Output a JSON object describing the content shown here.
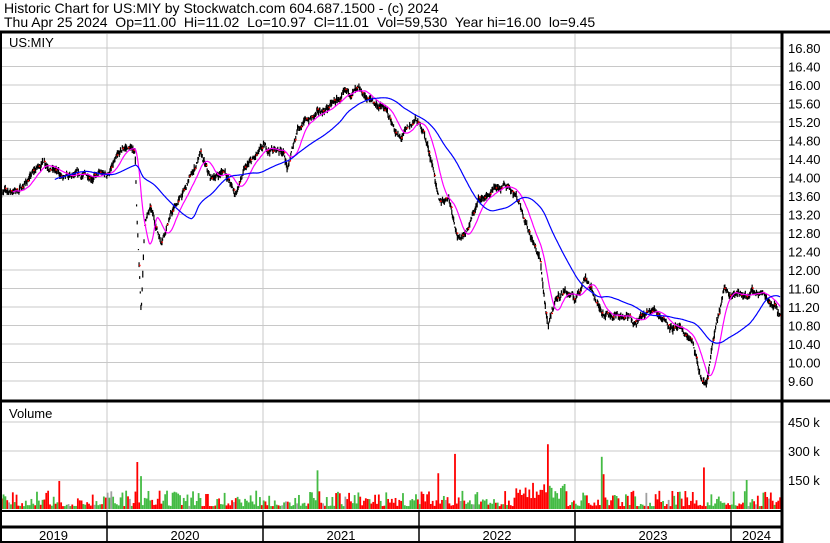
{
  "header": {
    "title": "Historic Chart for US:MIY by Stockwatch.com 604.687.1500 - (c) 2024",
    "quote_line": "Thu Apr 25 2024  Op=11.00  Hi=11.02  Lo=10.97  Cl=11.01  Vol=59,530  Year hi=16.00  lo=9.45"
  },
  "chart_data": [
    {
      "type": "line",
      "panel": "price",
      "symbol_label": "US:MIY",
      "y_ticks": [
        "16.80",
        "16.40",
        "16.00",
        "15.60",
        "15.20",
        "14.80",
        "14.40",
        "14.00",
        "13.60",
        "13.20",
        "12.80",
        "12.40",
        "12.00",
        "11.60",
        "11.20",
        "10.80",
        "10.40",
        "10.00",
        "9.60"
      ],
      "ylim": [
        9.2,
        17.2
      ],
      "x_ticks": [
        "2019",
        "2020",
        "2021",
        "2022",
        "2023",
        "2024"
      ],
      "grid": true,
      "colors": {
        "price": "#000000",
        "ma_short": "#ff00ff",
        "ma_long": "#0000ff",
        "close_mark": "#ff0000"
      },
      "series_approx_close": [
        [
          "2019-04-25",
          13.67
        ],
        [
          "2019-06-10",
          13.73
        ],
        [
          "2019-08-07",
          14.38
        ],
        [
          "2019-09-24",
          13.95
        ],
        [
          "2019-11-21",
          14.05
        ],
        [
          "2020-01-01",
          14.05
        ],
        [
          "2020-02-12",
          14.64
        ],
        [
          "2020-03-07",
          14.6
        ],
        [
          "2020-03-11",
          13.19
        ],
        [
          "2020-03-21",
          11.03
        ],
        [
          "2020-03-30",
          13.1
        ],
        [
          "2020-04-12",
          13.3
        ],
        [
          "2020-05-06",
          12.65
        ],
        [
          "2020-05-29",
          13.19
        ],
        [
          "2020-07-02",
          13.73
        ],
        [
          "2020-08-07",
          14.49
        ],
        [
          "2020-08-30",
          13.95
        ],
        [
          "2020-10-04",
          14.16
        ],
        [
          "2020-10-27",
          13.62
        ],
        [
          "2020-11-20",
          14.16
        ],
        [
          "2021-01-01",
          14.6
        ],
        [
          "2021-02-17",
          14.6
        ],
        [
          "2021-02-28",
          14.16
        ],
        [
          "2021-03-24",
          15.13
        ],
        [
          "2021-05-08",
          15.35
        ],
        [
          "2021-06-28",
          15.68
        ],
        [
          "2021-08-03",
          15.85
        ],
        [
          "2021-09-08",
          15.68
        ],
        [
          "2021-10-14",
          15.46
        ],
        [
          "2021-11-18",
          14.81
        ],
        [
          "2021-12-23",
          15.24
        ],
        [
          "2022-01-11",
          15.03
        ],
        [
          "2022-02-05",
          14.16
        ],
        [
          "2022-02-17",
          13.4
        ],
        [
          "2022-03-11",
          13.62
        ],
        [
          "2022-04-05",
          12.65
        ],
        [
          "2022-04-28",
          12.97
        ],
        [
          "2022-05-21",
          13.51
        ],
        [
          "2022-06-14",
          13.62
        ],
        [
          "2022-07-31",
          13.84
        ],
        [
          "2022-08-23",
          13.51
        ],
        [
          "2022-09-16",
          12.86
        ],
        [
          "2022-10-11",
          12.22
        ],
        [
          "2022-10-30",
          10.7
        ],
        [
          "2022-11-15",
          11.35
        ],
        [
          "2022-12-08",
          11.57
        ],
        [
          "2023-01-01",
          11.35
        ],
        [
          "2023-01-26",
          11.89
        ],
        [
          "2023-02-28",
          11.14
        ],
        [
          "2023-04-04",
          11.03
        ],
        [
          "2023-05-21",
          10.92
        ],
        [
          "2023-07-08",
          11.14
        ],
        [
          "2023-08-13",
          10.81
        ],
        [
          "2023-09-30",
          10.49
        ],
        [
          "2023-10-23",
          9.62
        ],
        [
          "2023-11-04",
          9.51
        ],
        [
          "2023-11-21",
          10.49
        ],
        [
          "2023-12-17",
          11.57
        ],
        [
          "2024-01-22",
          11.46
        ],
        [
          "2024-03-10",
          11.52
        ],
        [
          "2024-04-15",
          11.24
        ],
        [
          "2024-04-25",
          11.01
        ]
      ]
    },
    {
      "type": "bar",
      "panel": "volume",
      "title": "Volume",
      "y_ticks": [
        "450 k",
        "300 k",
        "150 k"
      ],
      "ylim": [
        0,
        560000
      ],
      "colors": {
        "up": "#44bb44",
        "down": "#ff0000",
        "unchanged": "#a0a0a0"
      },
      "notable_volumes": [
        [
          "2019-09-10",
          145000,
          "down"
        ],
        [
          "2020-03-11",
          243000,
          "down"
        ],
        [
          "2020-03-20",
          170000,
          "up"
        ],
        [
          "2021-05-10",
          200000,
          "up"
        ],
        [
          "2022-02-15",
          185000,
          "down"
        ],
        [
          "2022-03-25",
          285000,
          "down"
        ],
        [
          "2022-10-28",
          335000,
          "down"
        ],
        [
          "2023-03-10",
          180000,
          "down"
        ],
        [
          "2023-03-05",
          270000,
          "up"
        ],
        [
          "2023-10-30",
          215000,
          "down"
        ],
        [
          "2024-02-05",
          150000,
          "up"
        ]
      ]
    }
  ]
}
